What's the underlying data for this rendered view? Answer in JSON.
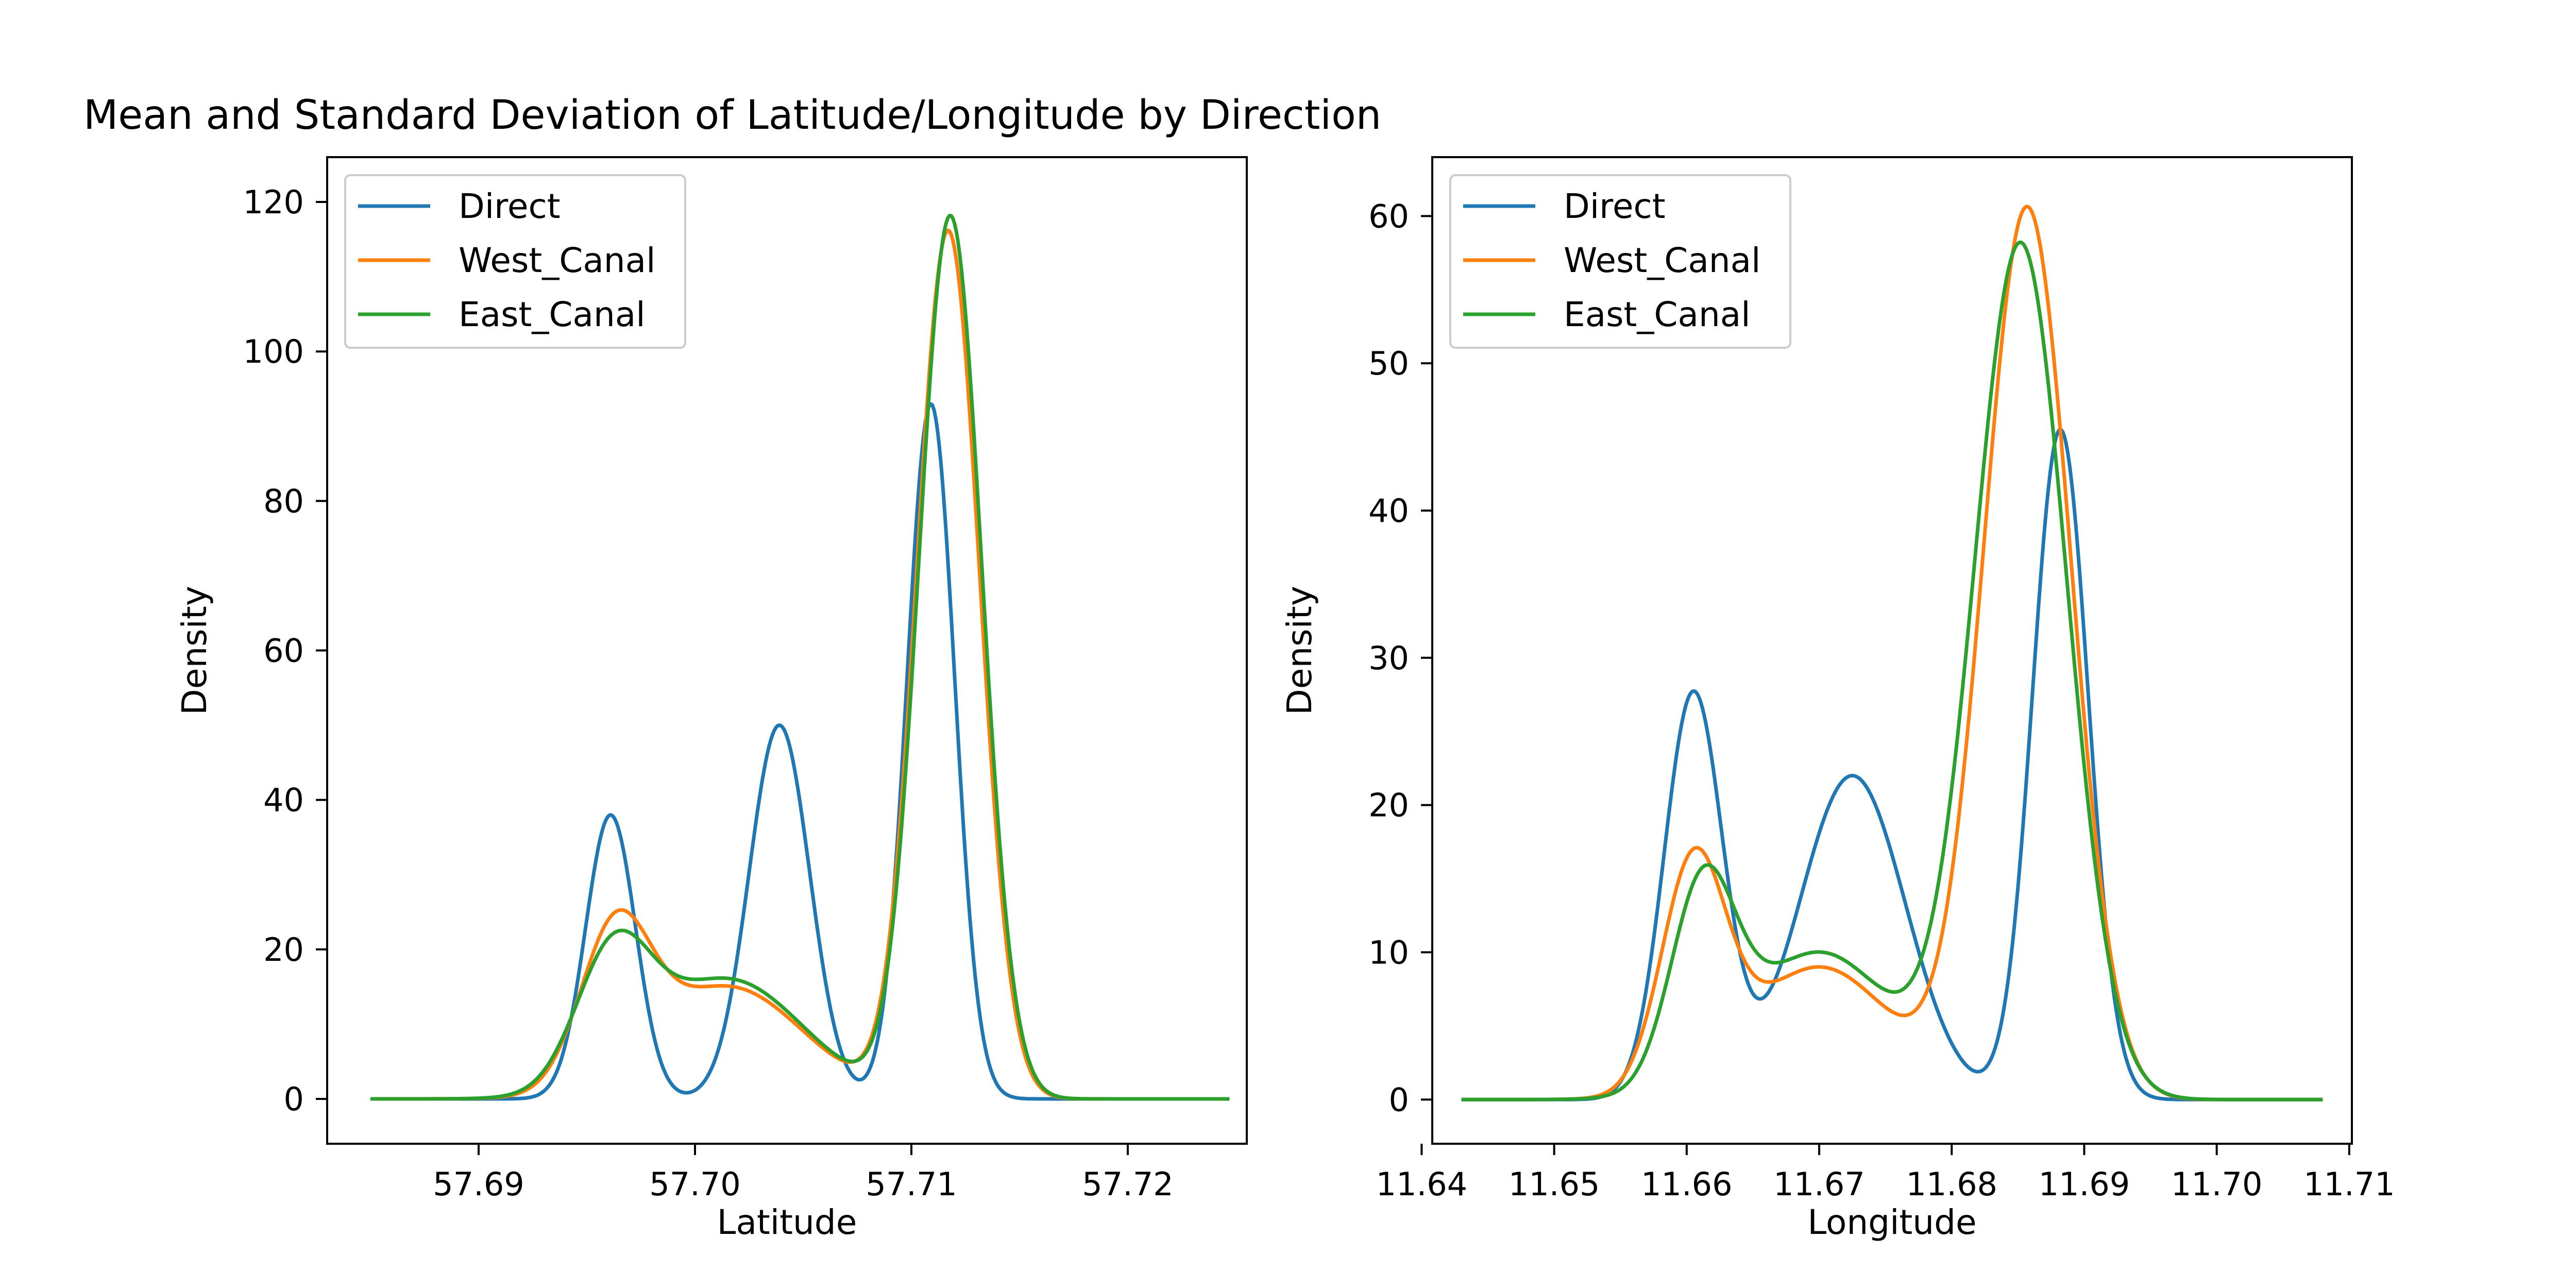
{
  "figure": {
    "title": "Mean and Standard Deviation of Latitude/Longitude by Direction"
  },
  "colors": {
    "Direct": "#1f77b4",
    "West_Canal": "#ff7f0e",
    "East_Canal": "#2ca02c"
  },
  "chart_data": [
    {
      "type": "line",
      "title": "",
      "xlabel": "Latitude",
      "ylabel": "Density",
      "xlim": [
        57.683,
        57.7255
      ],
      "ylim": [
        -6,
        126
      ],
      "xticks": [
        "57.69",
        "57.70",
        "57.71",
        "57.72"
      ],
      "xtick_values": [
        57.69,
        57.7,
        57.71,
        57.72
      ],
      "yticks": [
        "0",
        "20",
        "40",
        "60",
        "80",
        "100",
        "120"
      ],
      "ytick_values": [
        0,
        20,
        40,
        60,
        80,
        100,
        120
      ],
      "legend": "top-left",
      "x_range": [
        57.685,
        57.7247
      ],
      "series": [
        {
          "name": "Direct",
          "color": "#1f77b4",
          "components": [
            {
              "mu": 57.6961,
              "sigma": 0.00115,
              "amp": 38
            },
            {
              "mu": 57.7039,
              "sigma": 0.0014,
              "amp": 50
            },
            {
              "mu": 57.7109,
              "sigma": 0.0011,
              "amp": 93
            }
          ]
        },
        {
          "name": "West_Canal",
          "color": "#ff7f0e",
          "components": [
            {
              "mu": 57.6963,
              "sigma": 0.0016,
              "amp": 20
            },
            {
              "mu": 57.7015,
              "sigma": 0.0035,
              "amp": 15
            },
            {
              "mu": 57.7117,
              "sigma": 0.00145,
              "amp": 116
            }
          ]
        },
        {
          "name": "East_Canal",
          "color": "#2ca02c",
          "components": [
            {
              "mu": 57.6962,
              "sigma": 0.0017,
              "amp": 17
            },
            {
              "mu": 57.7015,
              "sigma": 0.0035,
              "amp": 16
            },
            {
              "mu": 57.7118,
              "sigma": 0.00145,
              "amp": 118
            }
          ]
        }
      ]
    },
    {
      "type": "line",
      "title": "",
      "xlabel": "Longitude",
      "ylabel": "Density",
      "xlim": [
        11.6408,
        11.7102
      ],
      "ylim": [
        -3,
        64
      ],
      "xticks": [
        "11.64",
        "11.65",
        "11.66",
        "11.67",
        "11.68",
        "11.69",
        "11.70",
        "11.71"
      ],
      "xtick_values": [
        11.64,
        11.65,
        11.66,
        11.67,
        11.68,
        11.69,
        11.7,
        11.71
      ],
      "yticks": [
        "0",
        "10",
        "20",
        "30",
        "40",
        "50",
        "60"
      ],
      "ytick_values": [
        0,
        10,
        20,
        30,
        40,
        50,
        60
      ],
      "legend": "top-left",
      "x_range": [
        11.643,
        11.708
      ],
      "series": [
        {
          "name": "Direct",
          "color": "#1f77b4",
          "components": [
            {
              "mu": 11.6605,
              "sigma": 0.0022,
              "amp": 27.5
            },
            {
              "mu": 11.6725,
              "sigma": 0.004,
              "amp": 22
            },
            {
              "mu": 11.6882,
              "sigma": 0.0021,
              "amp": 45.5
            }
          ]
        },
        {
          "name": "West_Canal",
          "color": "#ff7f0e",
          "components": [
            {
              "mu": 11.6605,
              "sigma": 0.0024,
              "amp": 15
            },
            {
              "mu": 11.67,
              "sigma": 0.0055,
              "amp": 9
            },
            {
              "mu": 11.6857,
              "sigma": 0.0033,
              "amp": 60.5
            }
          ]
        },
        {
          "name": "East_Canal",
          "color": "#2ca02c",
          "components": [
            {
              "mu": 11.6612,
              "sigma": 0.0024,
              "amp": 13
            },
            {
              "mu": 11.67,
              "sigma": 0.0055,
              "amp": 10
            },
            {
              "mu": 11.6852,
              "sigma": 0.0035,
              "amp": 58
            }
          ]
        }
      ]
    }
  ]
}
